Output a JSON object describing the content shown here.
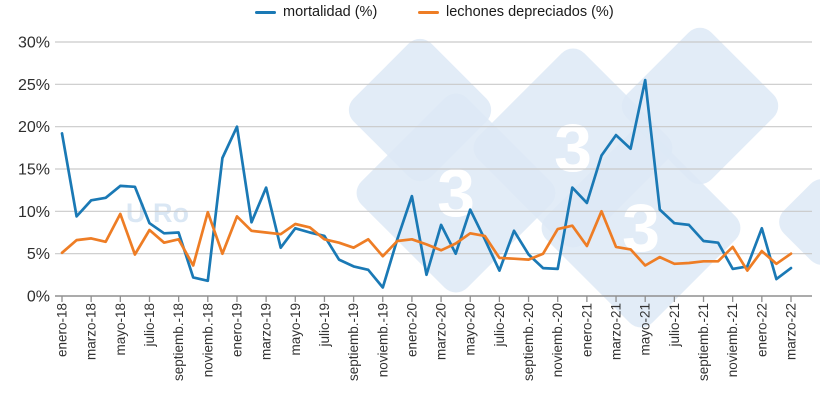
{
  "legend": {
    "items": [
      {
        "label": "mortalidad (%)",
        "color": "#1a79b5"
      },
      {
        "label": "lechones depreciados (%)",
        "color": "#ee7d25"
      }
    ]
  },
  "watermark": {
    "glyph": "3",
    "ghost_text": "U Ro",
    "diamond_color": "#dde9f6",
    "glyph_color": "#ffffff"
  },
  "chart_data": {
    "type": "line",
    "title": "",
    "xlabel": "",
    "ylabel": "",
    "ylim": [
      0,
      30
    ],
    "grid": "horizontal",
    "legend_position": "top-center",
    "x_tick_labels": [
      "enero-18",
      "marzo-18",
      "mayo-18",
      "julio-18",
      "septiemb.-18",
      "noviemb.-18",
      "enero-19",
      "marzo-19",
      "mayo-19",
      "julio-19",
      "septiemb.-19",
      "noviemb.-19",
      "enero-20",
      "marzo-20",
      "mayo-20",
      "julio-20",
      "septiemb.-20",
      "noviemb.-20",
      "enero-21",
      "marzo-21",
      "mayo-21",
      "julio-21",
      "septiemb.-21",
      "noviemb.-21",
      "enero-22",
      "marzo-22"
    ],
    "months_per_tick": 2,
    "points_are_monthly": true,
    "y_tick_labels": [
      "0%",
      "5%",
      "10%",
      "15%",
      "20%",
      "25%",
      "30%"
    ],
    "series": [
      {
        "name": "mortalidad (%)",
        "color": "#1a79b5",
        "values": [
          19.2,
          9.4,
          11.3,
          11.6,
          13.0,
          12.9,
          8.6,
          7.4,
          7.5,
          2.2,
          1.8,
          16.3,
          20.0,
          8.7,
          12.8,
          5.7,
          8.0,
          7.5,
          7.1,
          4.3,
          3.5,
          3.1,
          1.0,
          6.7,
          11.8,
          2.5,
          8.4,
          5.0,
          10.2,
          6.7,
          3.0,
          7.7,
          4.9,
          3.3,
          3.2,
          12.8,
          11.0,
          16.6,
          19.0,
          17.4,
          25.5,
          10.2,
          8.6,
          8.4,
          6.5,
          6.3,
          3.2,
          3.5,
          8.0,
          2.0,
          3.3
        ]
      },
      {
        "name": "lechones depreciados (%)",
        "color": "#ee7d25",
        "values": [
          5.1,
          6.6,
          6.8,
          6.4,
          9.7,
          4.9,
          7.8,
          6.3,
          6.7,
          3.6,
          9.9,
          5.0,
          9.4,
          7.7,
          7.5,
          7.3,
          8.5,
          8.1,
          6.7,
          6.3,
          5.7,
          6.7,
          4.7,
          6.5,
          6.7,
          6.1,
          5.4,
          6.2,
          7.4,
          7.1,
          4.5,
          4.4,
          4.3,
          5.0,
          7.9,
          8.3,
          5.9,
          10.0,
          5.8,
          5.5,
          3.6,
          4.6,
          3.8,
          3.9,
          4.1,
          4.1,
          5.8,
          3.0,
          5.3,
          3.8,
          5.0
        ]
      }
    ]
  }
}
